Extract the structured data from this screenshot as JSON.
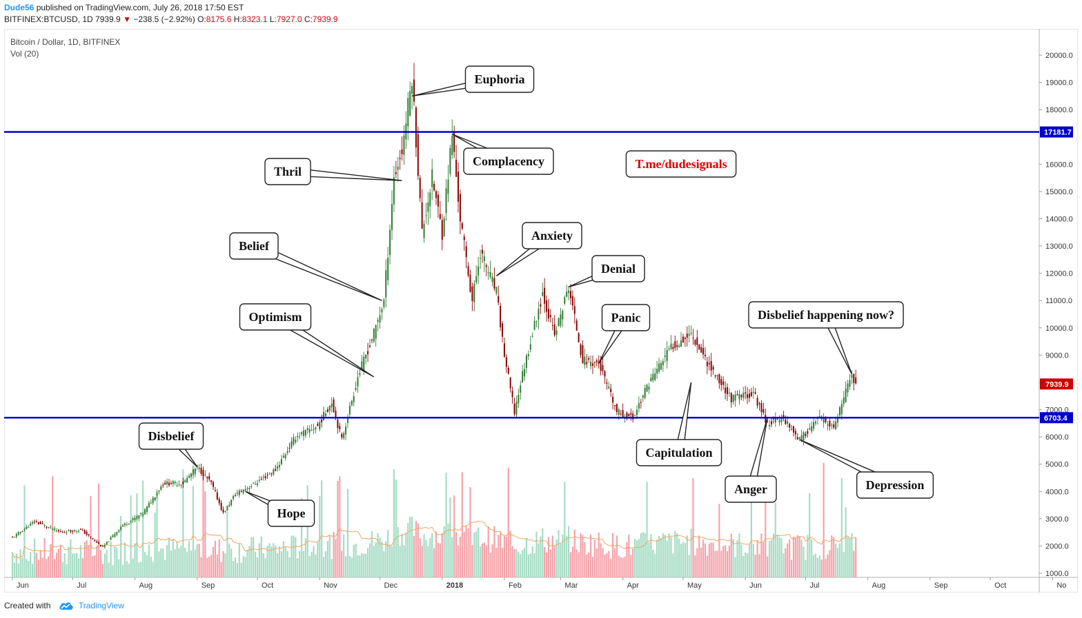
{
  "header": {
    "author": "Dude56",
    "published": "published on TradingView.com, July 26, 2018 17:50 EST",
    "symbol": "BITFINEX:BTCUSD, 1D",
    "last": "7939.9",
    "change": "−238.5 (−2.92%)",
    "o_label": "O:",
    "o": "8175.6",
    "h_label": "H:",
    "h": "8323.1",
    "l_label": "L:",
    "l": "7927.0",
    "c_label": "C:",
    "c": "7939.9"
  },
  "legend": {
    "title": "Bitcoin / Dollar, 1D, BITFINEX",
    "volume": "Vol (20)"
  },
  "footer": {
    "created_with": "Created with",
    "brand": "TradingView"
  },
  "colors": {
    "up": "#2e7d32",
    "down": "#8b0000",
    "vol_up": "#a5dcc4",
    "vol_down": "#f4a3aa",
    "hline": "#0000cc",
    "ma": "#f5a25d",
    "last_tag": "#cc0000",
    "accent": "#2196f3"
  },
  "chart_data": {
    "type": "candlestick",
    "x_ticks": [
      "Jun",
      "Jul",
      "Aug",
      "Sep",
      "Oct",
      "Nov",
      "Dec",
      "2018",
      "Feb",
      "Mar",
      "Apr",
      "May",
      "Jun",
      "Jul",
      "Aug",
      "Sep",
      "Oct",
      "No"
    ],
    "y_ticks": [
      "20000.0",
      "19000.0",
      "18000.0",
      "16000.0",
      "15000.0",
      "14000.0",
      "13000.0",
      "12000.0",
      "11000.0",
      "10000.0",
      "9000.0",
      "8000.0",
      "7000.0",
      "6000.0",
      "5000.0",
      "4000.0",
      "3000.0",
      "2000.0",
      "1000.0"
    ],
    "y_tick_values": [
      20000,
      19000,
      18000,
      16000,
      15000,
      14000,
      13000,
      12000,
      11000,
      10000,
      9000,
      8000,
      7000,
      6000,
      5000,
      4000,
      3000,
      2000,
      1000
    ],
    "ylim": [
      600,
      20800
    ],
    "hlines": [
      {
        "value": 17181.7,
        "label": "17181.7"
      },
      {
        "value": 6703.4,
        "label": "6703.4"
      }
    ],
    "last_price": {
      "value": 7939.9,
      "label": "7939.9"
    },
    "price_path": [
      [
        "2017-06-01",
        2300
      ],
      [
        "2017-06-12",
        2900
      ],
      [
        "2017-06-25",
        2500
      ],
      [
        "2017-07-05",
        2600
      ],
      [
        "2017-07-16",
        1950
      ],
      [
        "2017-07-25",
        2700
      ],
      [
        "2017-08-05",
        3200
      ],
      [
        "2017-08-15",
        4300
      ],
      [
        "2017-08-25",
        4300
      ],
      [
        "2017-09-01",
        4900
      ],
      [
        "2017-09-08",
        4300
      ],
      [
        "2017-09-14",
        3200
      ],
      [
        "2017-09-20",
        3900
      ],
      [
        "2017-09-30",
        4300
      ],
      [
        "2017-10-10",
        4800
      ],
      [
        "2017-10-20",
        6000
      ],
      [
        "2017-10-31",
        6400
      ],
      [
        "2017-11-07",
        7300
      ],
      [
        "2017-11-12",
        5900
      ],
      [
        "2017-11-20",
        8200
      ],
      [
        "2017-11-28",
        9800
      ],
      [
        "2017-12-03",
        11000
      ],
      [
        "2017-12-08",
        15500
      ],
      [
        "2017-12-12",
        16500
      ],
      [
        "2017-12-17",
        19200
      ],
      [
        "2017-12-22",
        13500
      ],
      [
        "2017-12-27",
        15500
      ],
      [
        "2018-01-01",
        13500
      ],
      [
        "2018-01-06",
        17100
      ],
      [
        "2018-01-10",
        14000
      ],
      [
        "2018-01-16",
        11000
      ],
      [
        "2018-01-20",
        12800
      ],
      [
        "2018-01-28",
        11300
      ],
      [
        "2018-02-01",
        9000
      ],
      [
        "2018-02-06",
        6900
      ],
      [
        "2018-02-10",
        8300
      ],
      [
        "2018-02-20",
        11300
      ],
      [
        "2018-02-26",
        9700
      ],
      [
        "2018-03-05",
        11500
      ],
      [
        "2018-03-12",
        8800
      ],
      [
        "2018-03-20",
        8700
      ],
      [
        "2018-03-29",
        6900
      ],
      [
        "2018-04-06",
        6700
      ],
      [
        "2018-04-14",
        8000
      ],
      [
        "2018-04-25",
        9300
      ],
      [
        "2018-05-05",
        9800
      ],
      [
        "2018-05-15",
        8500
      ],
      [
        "2018-05-25",
        7400
      ],
      [
        "2018-06-05",
        7600
      ],
      [
        "2018-06-12",
        6500
      ],
      [
        "2018-06-20",
        6700
      ],
      [
        "2018-06-28",
        5900
      ],
      [
        "2018-07-08",
        6700
      ],
      [
        "2018-07-15",
        6300
      ],
      [
        "2018-07-20",
        7400
      ],
      [
        "2018-07-24",
        8300
      ],
      [
        "2018-07-26",
        7939.9
      ]
    ],
    "annotations": [
      {
        "label": "Disbelief",
        "date": "2017-09-01",
        "price": 4900
      },
      {
        "label": "Hope",
        "date": "2017-09-25",
        "price": 4000
      },
      {
        "label": "Optimism",
        "date": "2017-11-28",
        "price": 8200
      },
      {
        "label": "Belief",
        "date": "2017-12-02",
        "price": 11000
      },
      {
        "label": "Thril",
        "date": "2017-12-12",
        "price": 15400
      },
      {
        "label": "Euphoria",
        "date": "2017-12-17",
        "price": 18500
      },
      {
        "label": "Complacency",
        "date": "2018-01-06",
        "price": 17100
      },
      {
        "label": "Anxiety",
        "date": "2018-01-28",
        "price": 11900
      },
      {
        "label": "Denial",
        "date": "2018-03-05",
        "price": 11500
      },
      {
        "label": "Panic",
        "date": "2018-03-20",
        "price": 8700
      },
      {
        "label": "Capitulation",
        "date": "2018-05-05",
        "price": 8000
      },
      {
        "label": "Anger",
        "date": "2018-06-12",
        "price": 6700
      },
      {
        "label": "Depression",
        "date": "2018-06-28",
        "price": 5900
      },
      {
        "label": "Disbelief happening now?",
        "date": "2018-07-24",
        "price": 8300
      }
    ],
    "promo": "T.me/dudesignals"
  }
}
